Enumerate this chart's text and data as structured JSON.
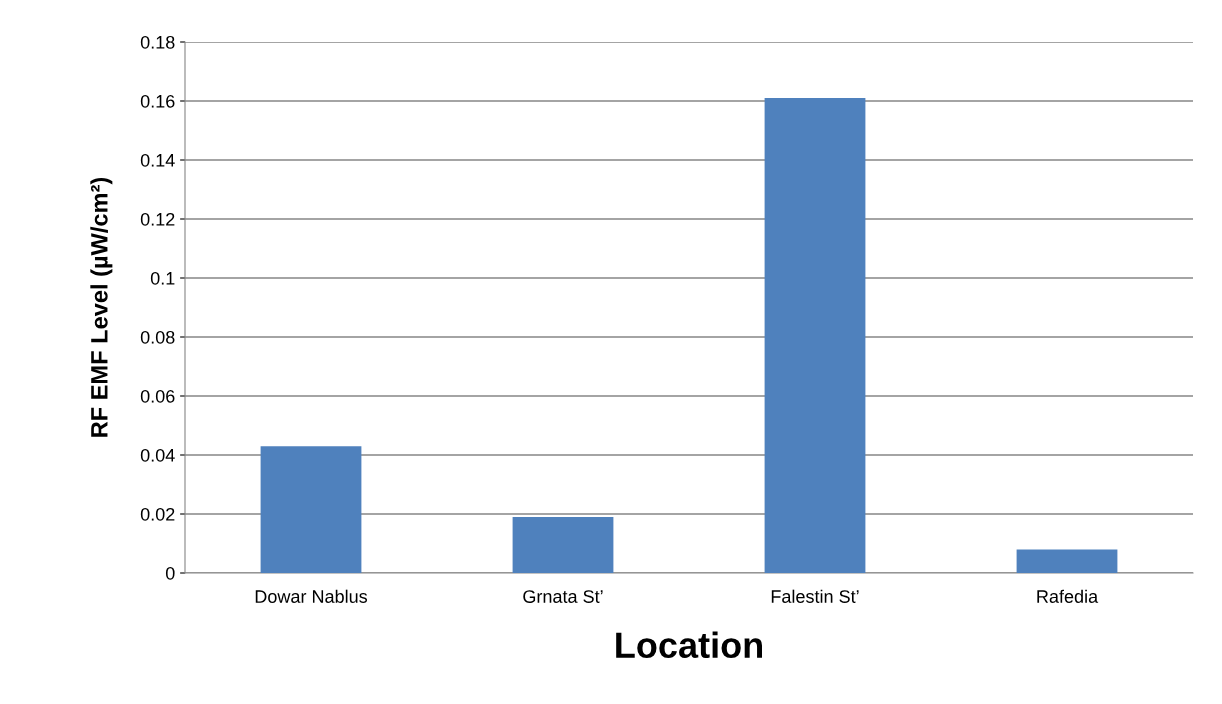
{
  "chart_data": {
    "type": "bar",
    "xlabel": "Location",
    "ylabel": "RF EMF Level (µW/cm²)",
    "categories": [
      "Dowar Nablus",
      "Grnata St’",
      "Falestin St’",
      "Rafedia"
    ],
    "values": [
      0.043,
      0.019,
      0.161,
      0.008
    ],
    "color": "#4f81bd",
    "ylim": [
      0,
      0.18
    ],
    "yticks": [
      0,
      0.02,
      0.04,
      0.06,
      0.08,
      0.1,
      0.12,
      0.14,
      0.16,
      0.18
    ],
    "grid": "y",
    "legend": false
  }
}
